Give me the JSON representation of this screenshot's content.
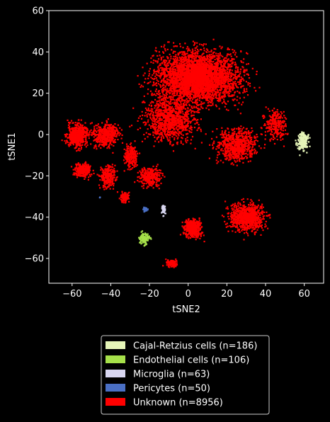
{
  "chart_data": {
    "type": "scatter",
    "title": "",
    "xlabel": "tSNE2",
    "ylabel": "tSNE1",
    "xlim": [
      -72,
      70
    ],
    "ylim": [
      -72,
      60
    ],
    "xticks": [
      -60,
      -40,
      -20,
      0,
      20,
      40,
      60
    ],
    "yticks": [
      -60,
      -40,
      -20,
      0,
      20,
      40,
      60
    ],
    "xtick_labels": [
      "−60",
      "−40",
      "−20",
      "0",
      "20",
      "40",
      "60"
    ],
    "ytick_labels": [
      "−60",
      "−40",
      "−20",
      "0",
      "20",
      "40",
      "60"
    ],
    "grid": false,
    "background": "#000000",
    "legend_position": "below plot",
    "series": [
      {
        "name": "Cajal-Retzius cells (n=186)",
        "color": "#e6f5b8",
        "clusters": [
          {
            "center": [
              59,
              -3
            ],
            "spread": [
              2.5,
              4
            ],
            "count": 186
          }
        ]
      },
      {
        "name": "Endothelial cells (n=106)",
        "color": "#a6e04a",
        "clusters": [
          {
            "center": [
              -23,
              -50
            ],
            "spread": [
              2.5,
              2.5
            ],
            "count": 106
          }
        ]
      },
      {
        "name": "Microglia (n=63)",
        "color": "#d8d6f0",
        "clusters": [
          {
            "center": [
              -13,
              -36
            ],
            "spread": [
              0.8,
              2
            ],
            "count": 63
          }
        ]
      },
      {
        "name": "Pericytes (n=50)",
        "color": "#4a6fc4",
        "clusters": [
          {
            "center": [
              -22.5,
              -36
            ],
            "spread": [
              1,
              0.8
            ],
            "count": 45
          },
          {
            "center": [
              -46,
              -30
            ],
            "spread": [
              0.3,
              0.3
            ],
            "count": 5
          }
        ]
      },
      {
        "name": "Unknown (n=8956)",
        "color": "#ff0000",
        "clusters": [
          {
            "center": [
              5,
              28
            ],
            "spread": [
              20,
              11
            ],
            "count": 3400
          },
          {
            "center": [
              -10,
              8
            ],
            "spread": [
              12,
              10
            ],
            "count": 1000
          },
          {
            "center": [
              25,
              -5
            ],
            "spread": [
              9,
              7
            ],
            "count": 700
          },
          {
            "center": [
              45,
              5
            ],
            "spread": [
              5,
              7
            ],
            "count": 250
          },
          {
            "center": [
              -58,
              0
            ],
            "spread": [
              5,
              5
            ],
            "count": 550
          },
          {
            "center": [
              -43,
              0
            ],
            "spread": [
              6,
              5
            ],
            "count": 450
          },
          {
            "center": [
              -55,
              -17
            ],
            "spread": [
              4,
              3
            ],
            "count": 250
          },
          {
            "center": [
              -42,
              -20
            ],
            "spread": [
              4,
              5
            ],
            "count": 250
          },
          {
            "center": [
              -33,
              -30
            ],
            "spread": [
              2,
              2.5
            ],
            "count": 120
          },
          {
            "center": [
              -20,
              -20
            ],
            "spread": [
              5,
              4
            ],
            "count": 300
          },
          {
            "center": [
              -30,
              -10
            ],
            "spread": [
              3,
              5
            ],
            "count": 220
          },
          {
            "center": [
              30,
              -40
            ],
            "spread": [
              8,
              6
            ],
            "count": 800
          },
          {
            "center": [
              2,
              -45
            ],
            "spread": [
              4,
              4
            ],
            "count": 400
          },
          {
            "center": [
              -9,
              -62
            ],
            "spread": [
              2.5,
              1.5
            ],
            "count": 100
          },
          {
            "center": [
              5,
              30
            ],
            "spread": [
              4,
              6
            ],
            "count": 166
          }
        ]
      }
    ]
  }
}
